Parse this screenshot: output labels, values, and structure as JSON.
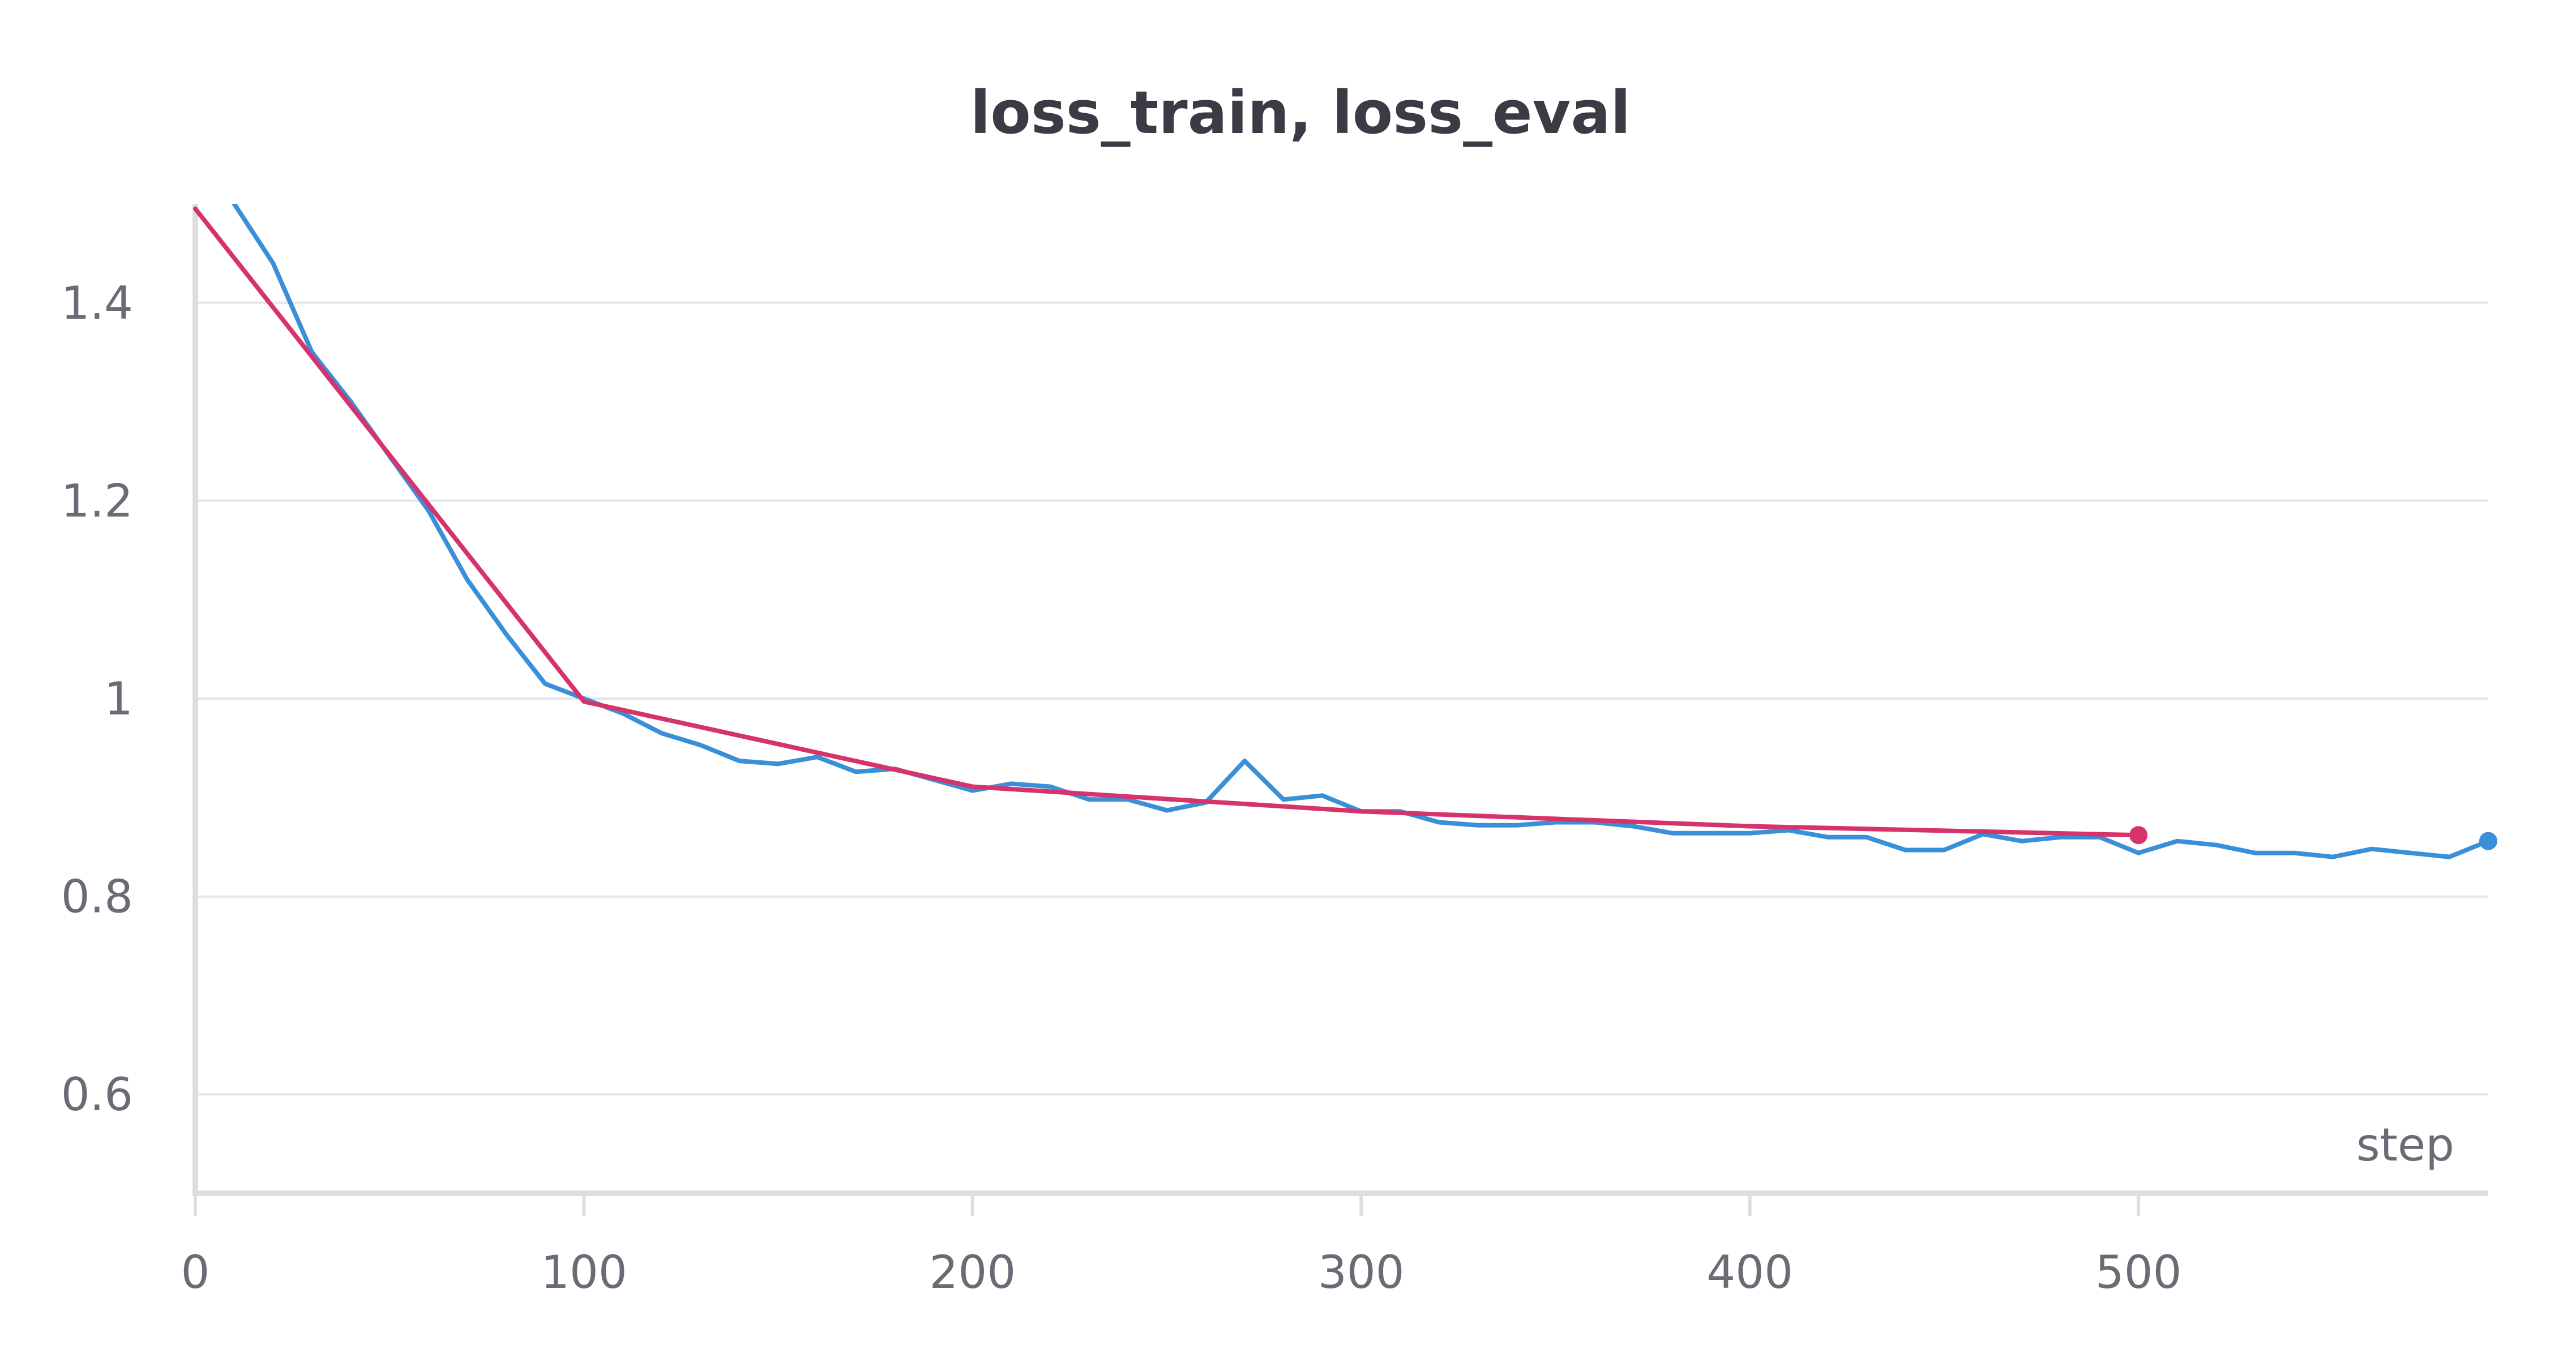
{
  "chart_data": {
    "type": "line",
    "title": "loss_train, loss_eval",
    "xlabel": "step",
    "ylabel": "",
    "xlim": [
      0,
      590
    ],
    "ylim": [
      0.5,
      1.5
    ],
    "x_ticks": [
      0,
      100,
      200,
      300,
      400,
      500
    ],
    "y_ticks": [
      0.6,
      0.8,
      1,
      1.2,
      1.4
    ],
    "x_tick_labels": [
      "0",
      "100",
      "200",
      "300",
      "400",
      "500"
    ],
    "y_tick_labels": [
      "0.6",
      "0.8",
      "1",
      "1.2",
      "1.4"
    ],
    "grid": true,
    "legend": "none",
    "series": [
      {
        "color": "#3a8fd9",
        "x": [
          10,
          20,
          30,
          40,
          50,
          60,
          70,
          80,
          90,
          100,
          110,
          120,
          130,
          140,
          150,
          160,
          170,
          180,
          190,
          200,
          210,
          220,
          230,
          240,
          250,
          260,
          270,
          280,
          290,
          300,
          310,
          320,
          330,
          340,
          350,
          360,
          370,
          380,
          390,
          400,
          410,
          420,
          430,
          440,
          450,
          460,
          470,
          480,
          490,
          500,
          510,
          520,
          530,
          540,
          550,
          560,
          570,
          580,
          590
        ],
        "y": [
          1.5,
          1.44,
          1.35,
          1.3,
          1.245,
          1.19,
          1.12,
          1.065,
          1.015,
          1.0,
          0.985,
          0.965,
          0.953,
          0.937,
          0.934,
          0.941,
          0.926,
          0.929,
          0.918,
          0.907,
          0.914,
          0.911,
          0.898,
          0.898,
          0.887,
          0.895,
          0.937,
          0.898,
          0.902,
          0.886,
          0.886,
          0.875,
          0.872,
          0.872,
          0.875,
          0.875,
          0.871,
          0.864,
          0.864,
          0.864,
          0.867,
          0.86,
          0.86,
          0.847,
          0.847,
          0.863,
          0.856,
          0.86,
          0.86,
          0.844,
          0.856,
          0.852,
          0.844,
          0.844,
          0.84,
          0.848,
          0.844,
          0.84,
          0.856
        ]
      },
      {
        "color": "#d6336c",
        "x": [
          0,
          100,
          200,
          300,
          400,
          500
        ],
        "y": [
          1.495,
          0.997,
          0.911,
          0.886,
          0.871,
          0.862
        ]
      }
    ]
  }
}
